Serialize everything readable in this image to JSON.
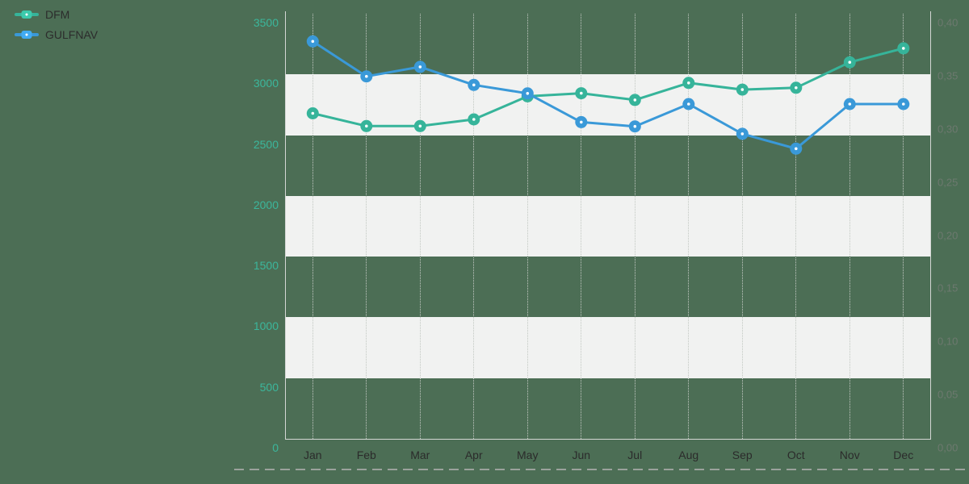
{
  "page": {
    "background": "#4c6e55"
  },
  "legend": {
    "position": "top-left",
    "items": [
      {
        "label": "DFM",
        "color": "#36b49a"
      },
      {
        "label": "GULFNAV",
        "color": "#3a99d8"
      }
    ]
  },
  "chart_data": {
    "type": "line",
    "title": "",
    "categories": [
      "Jan",
      "Feb",
      "Mar",
      "Apr",
      "May",
      "Jun",
      "Jul",
      "Aug",
      "Sep",
      "Oct",
      "Nov",
      "Dec"
    ],
    "series": [
      {
        "name": "DFM",
        "axis": "left",
        "color": "#36b49a",
        "values": [
          2680,
          2575,
          2575,
          2630,
          2820,
          2845,
          2790,
          2930,
          2875,
          2890,
          3100,
          3215
        ]
      },
      {
        "name": "GULFNAV",
        "axis": "right",
        "color": "#3a99d8",
        "values": [
          0.374,
          0.341,
          0.35,
          0.333,
          0.325,
          0.298,
          0.294,
          0.315,
          0.287,
          0.273,
          0.315,
          0.315
        ]
      }
    ],
    "left_axis": {
      "min": 0,
      "max": 3500,
      "step": 500,
      "tick_labels": [
        "3500",
        "3000",
        "2500",
        "2000",
        "1500",
        "1000",
        "500",
        "0"
      ],
      "label_color": "#3bb79c"
    },
    "right_axis": {
      "min": 0,
      "max": 0.4,
      "step": 0.05,
      "tick_labels": [
        "0,40",
        "0,35",
        "0,30",
        "0,25",
        "0,20",
        "0,15",
        "0,10",
        "0,05",
        "0,00"
      ],
      "label_color": "#6d796f"
    },
    "x_axis": {
      "label_color": "#2b2b2b"
    },
    "grid": {
      "horizontal_bands": "alternating",
      "band_color": "#f1f2f1",
      "vertical_gridlines": "dotted",
      "gridline_color": "#c2c8c2",
      "axis_line_color": "#d4d7d4"
    },
    "separator_color": "#9ba29c",
    "legend_position": "top-left"
  }
}
